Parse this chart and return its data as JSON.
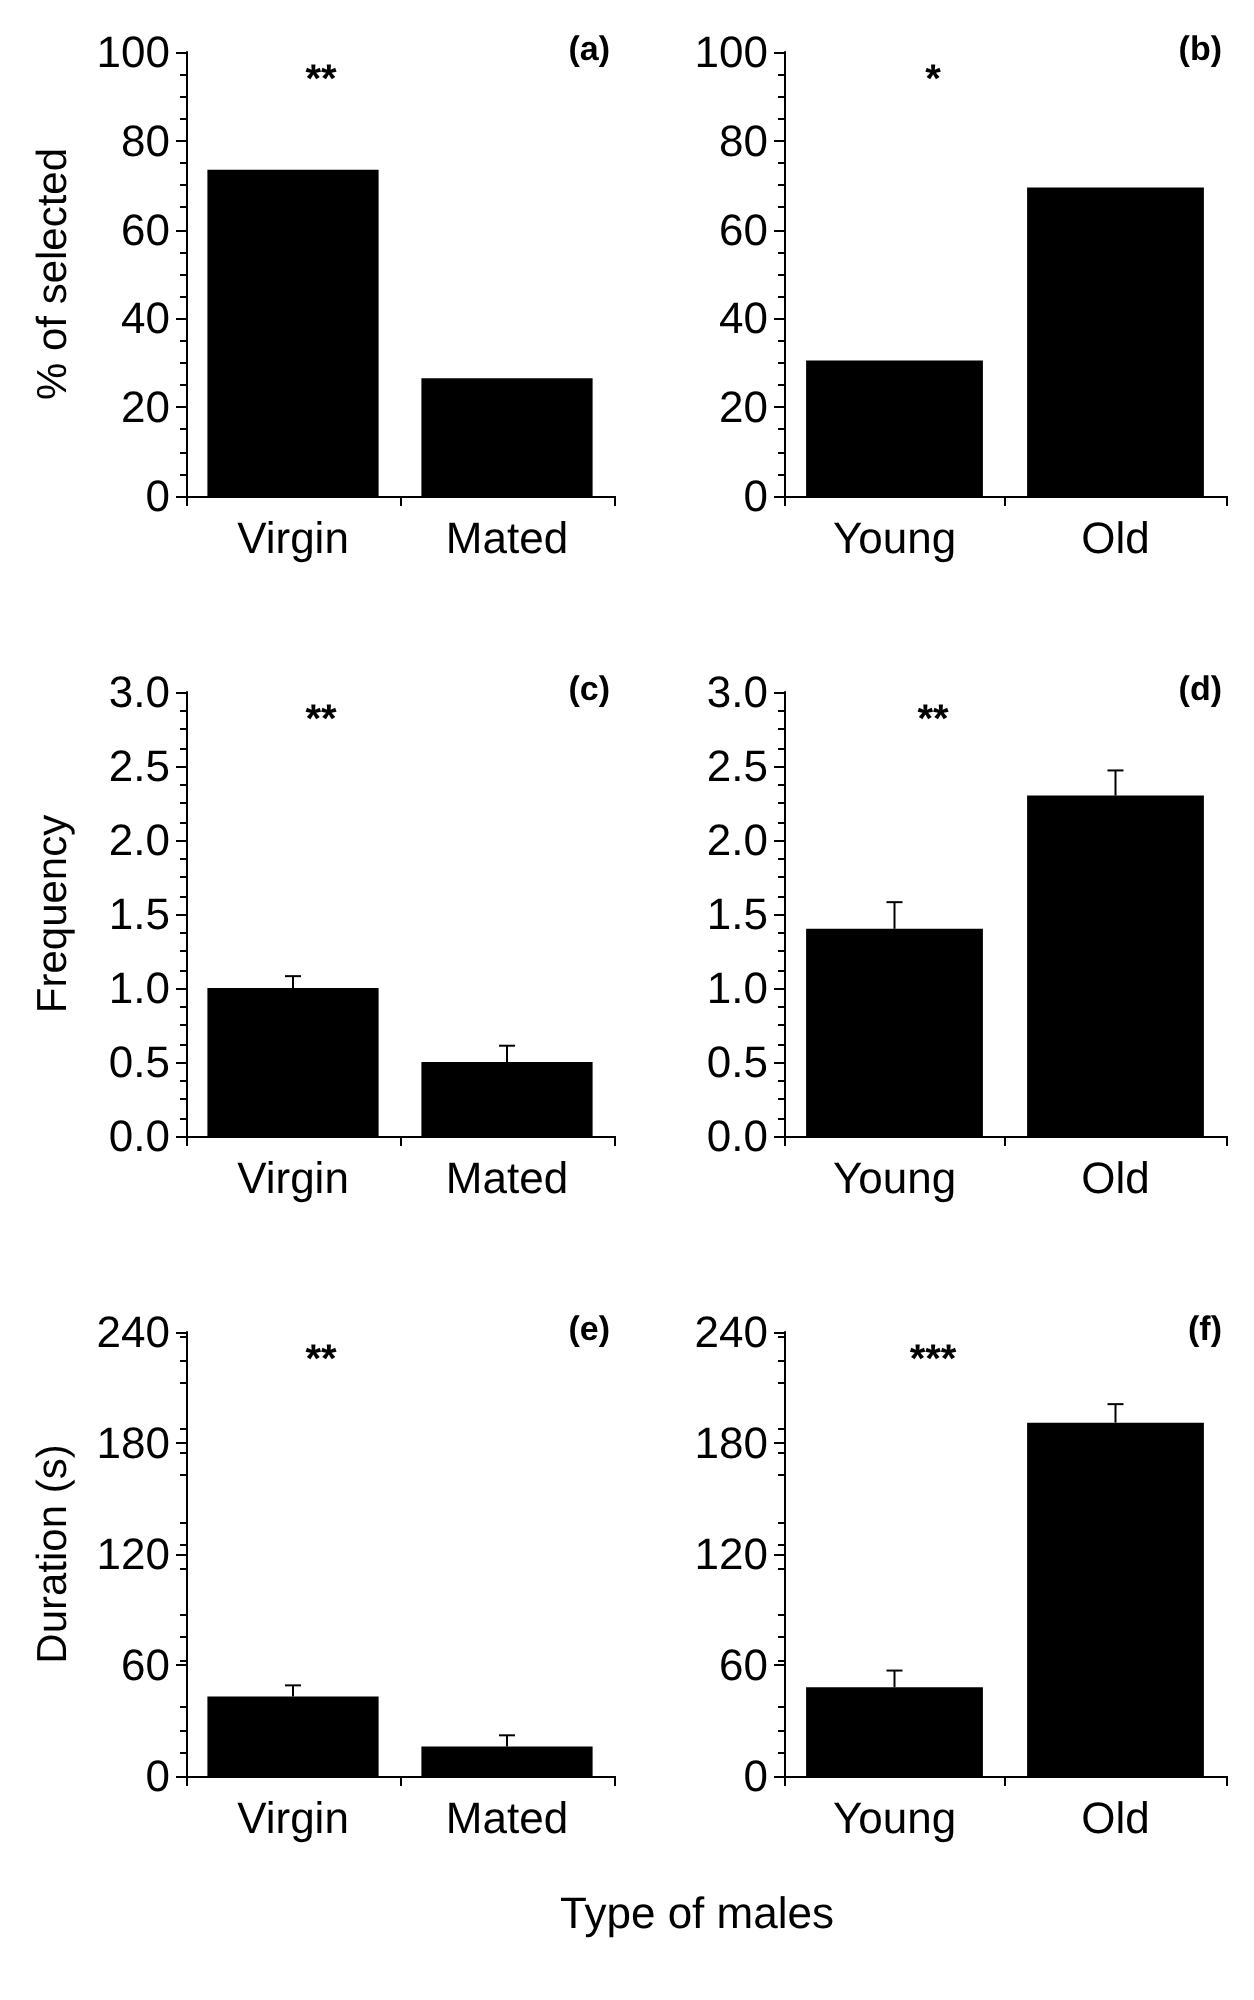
{
  "chart_data": [
    {
      "type": "bar",
      "title": "(a)",
      "ylabel": "% of selected",
      "categories": [
        "Virgin",
        "Mated"
      ],
      "values": [
        73.5,
        26.5
      ],
      "color": "#000000",
      "ylim": [
        0,
        100
      ],
      "yticks": [
        0,
        20,
        40,
        60,
        80,
        100
      ],
      "grid": false,
      "annotations": [
        "**"
      ]
    },
    {
      "type": "bar",
      "title": "(b)",
      "categories": [
        "Young",
        "Old"
      ],
      "values": [
        30.5,
        69.5
      ],
      "color": "#000000",
      "ylim": [
        0,
        100
      ],
      "yticks": [
        0,
        20,
        40,
        60,
        80,
        100
      ],
      "grid": false,
      "annotations": [
        "*"
      ]
    },
    {
      "type": "bar",
      "title": "(c)",
      "ylabel": "Frequency",
      "categories": [
        "Virgin",
        "Mated"
      ],
      "values": [
        1.0,
        0.5
      ],
      "errors": [
        0.08,
        0.11
      ],
      "color": "#000000",
      "ylim": [
        0,
        3
      ],
      "yticks": [
        {
          "value": 0,
          "label": "0.0"
        },
        {
          "value": 0.5,
          "label": "0.5"
        },
        {
          "value": 1,
          "label": "1.0"
        },
        {
          "value": 1.5,
          "label": "1.5"
        },
        {
          "value": 2,
          "label": "2.0"
        },
        {
          "value": 2.5,
          "label": "2.5"
        },
        {
          "value": 3,
          "label": "3.0"
        }
      ],
      "grid": false,
      "annotations": [
        "**"
      ]
    },
    {
      "type": "bar",
      "title": "(d)",
      "categories": [
        "Young",
        "Old"
      ],
      "values": [
        1.4,
        2.3
      ],
      "errors": [
        0.18,
        0.17
      ],
      "color": "#000000",
      "ylim": [
        0,
        3
      ],
      "yticks": [
        {
          "value": 0,
          "label": "0.0"
        },
        {
          "value": 0.5,
          "label": "0.5"
        },
        {
          "value": 1,
          "label": "1.0"
        },
        {
          "value": 1.5,
          "label": "1.5"
        },
        {
          "value": 2,
          "label": "2.0"
        },
        {
          "value": 2.5,
          "label": "2.5"
        },
        {
          "value": 3,
          "label": "3.0"
        }
      ],
      "grid": false,
      "annotations": [
        "**"
      ]
    },
    {
      "type": "bar",
      "title": "(e)",
      "ylabel": "Duration (s)",
      "xlabel": "Type of males",
      "categories": [
        "Virgin",
        "Mated"
      ],
      "values": [
        43,
        16
      ],
      "errors": [
        6,
        6
      ],
      "color": "#000000",
      "ylim": [
        0,
        240
      ],
      "yticks": [
        0,
        60,
        120,
        180,
        240
      ],
      "grid": false,
      "annotations": [
        "**"
      ]
    },
    {
      "type": "bar",
      "title": "(f)",
      "categories": [
        "Young",
        "Old"
      ],
      "values": [
        48,
        191
      ],
      "errors": [
        9,
        10
      ],
      "color": "#000000",
      "ylim": [
        0,
        240
      ],
      "yticks": [
        0,
        60,
        120,
        180,
        240
      ],
      "grid": false,
      "annotations": [
        "***"
      ]
    }
  ]
}
